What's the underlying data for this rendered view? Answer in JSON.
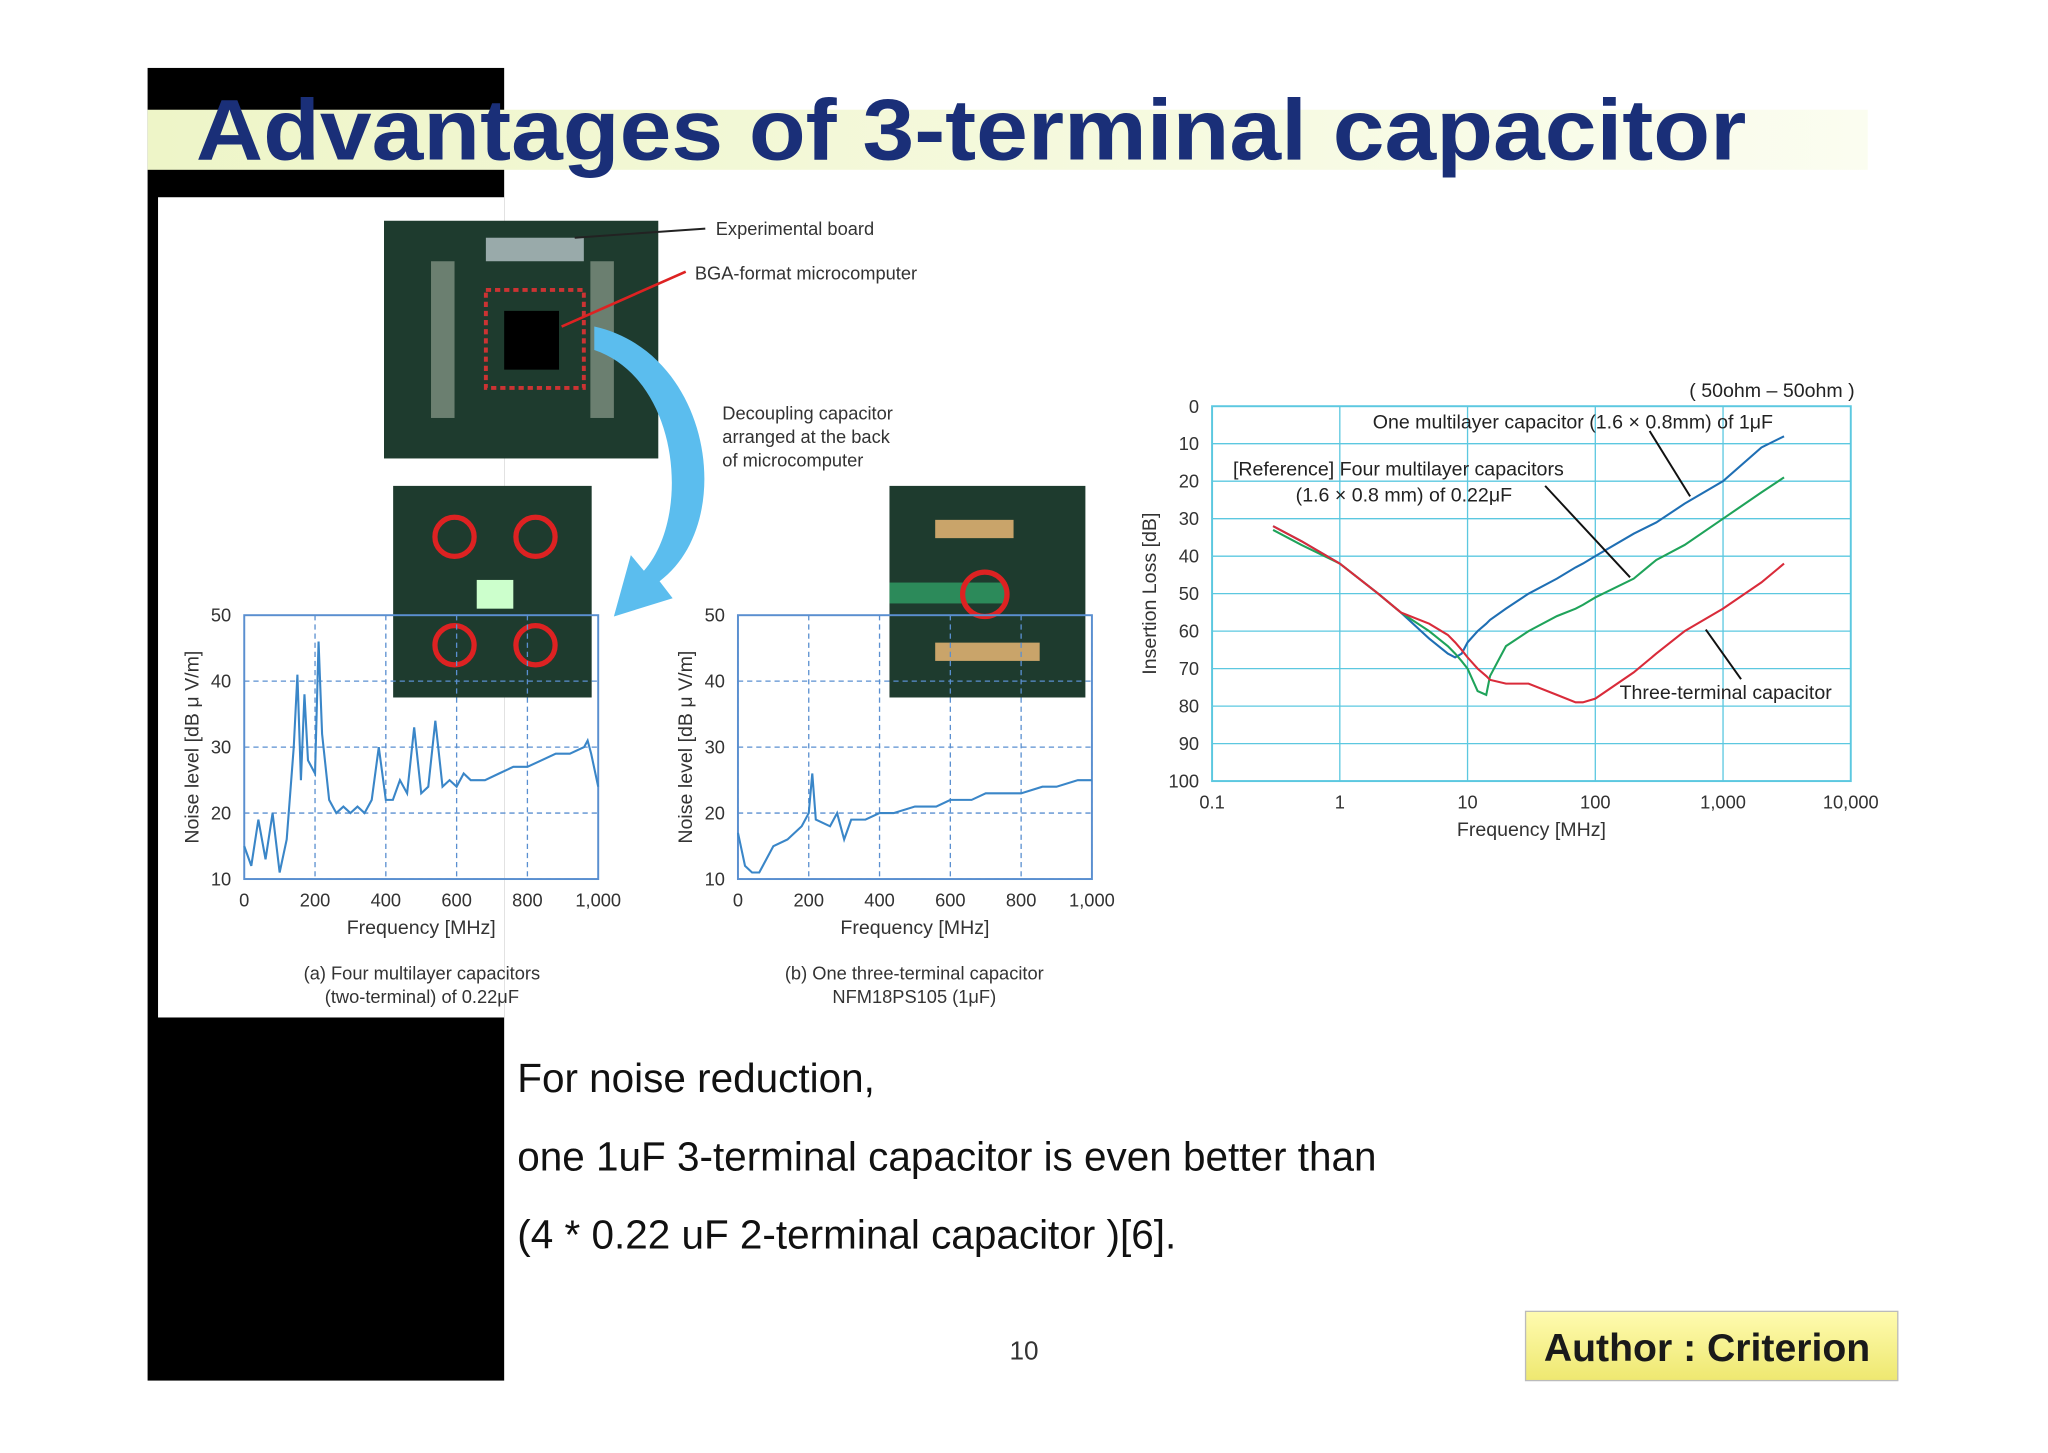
{
  "title": "Advantages of 3-terminal capacitor",
  "figure_labels": [
    "Experimental board",
    "BGA-format microcomputer",
    "Decoupling capacitor",
    "arranged at the back",
    "of microcomputer"
  ],
  "chart_data": [
    {
      "type": "line",
      "x_label": "Frequency [MHz]",
      "y_label": "Noise level [dB μ V/m]",
      "caption": [
        "(a) Four multilayer capacitors",
        "(two-terminal) of 0.22μF"
      ],
      "x": [
        0,
        20,
        40,
        60,
        80,
        100,
        120,
        140,
        150,
        160,
        170,
        180,
        200,
        210,
        220,
        240,
        260,
        280,
        300,
        320,
        340,
        360,
        380,
        400,
        420,
        440,
        460,
        480,
        500,
        520,
        540,
        560,
        580,
        600,
        620,
        640,
        680,
        720,
        760,
        800,
        840,
        880,
        920,
        960,
        970,
        980,
        1000
      ],
      "values": [
        15,
        12,
        19,
        13,
        20,
        11,
        16,
        30,
        41,
        25,
        38,
        28,
        26,
        46,
        32,
        22,
        20,
        21,
        20,
        21,
        20,
        22,
        30,
        22,
        22,
        25,
        23,
        33,
        23,
        24,
        34,
        24,
        25,
        24,
        26,
        25,
        25,
        26,
        27,
        27,
        28,
        29,
        29,
        30,
        31,
        29,
        24
      ],
      "color": "#3a86c8",
      "xlim": [
        0,
        1000
      ],
      "ylim": [
        10,
        50
      ],
      "xticks": [
        0,
        200,
        400,
        600,
        800,
        {
          "value": 1000,
          "label": "1,000"
        }
      ],
      "yticks": [
        10,
        20,
        30,
        40,
        50
      ],
      "grid": true
    },
    {
      "type": "line",
      "x_label": "Frequency [MHz]",
      "y_label": "Noise level [dB μ V/m]",
      "caption": [
        "(b) One three-terminal capacitor",
        "NFM18PS105 (1μF)"
      ],
      "x": [
        0,
        20,
        40,
        60,
        100,
        140,
        180,
        200,
        210,
        220,
        260,
        280,
        300,
        320,
        360,
        400,
        440,
        500,
        560,
        600,
        660,
        700,
        760,
        800,
        860,
        900,
        960,
        1000
      ],
      "values": [
        17,
        12,
        11,
        11,
        15,
        16,
        18,
        20,
        26,
        19,
        18,
        20,
        16,
        19,
        19,
        20,
        20,
        21,
        21,
        22,
        22,
        23,
        23,
        23,
        24,
        24,
        25,
        25
      ],
      "color": "#3a86c8",
      "xlim": [
        0,
        1000
      ],
      "ylim": [
        10,
        50
      ],
      "xticks": [
        0,
        200,
        400,
        600,
        800,
        {
          "value": 1000,
          "label": "1,000"
        }
      ],
      "yticks": [
        10,
        20,
        30,
        40,
        50
      ],
      "grid": true
    },
    {
      "type": "line",
      "x_scale": "log",
      "x_label": "Frequency [MHz]",
      "y_label": "Insertion Loss [dB]",
      "annotations": [
        "( 50ohm – 50ohm )",
        "One multilayer capacitor (1.6 × 0.8mm) of 1μF",
        "[Reference] Four multilayer capacitors",
        "(1.6 × 0.8 mm) of 0.22μF",
        "Three-terminal capacitor"
      ],
      "x": [
        0.3,
        0.5,
        1,
        2,
        3,
        5,
        7,
        8,
        9,
        10,
        12,
        14,
        15,
        20,
        30,
        50,
        70,
        80,
        100,
        200,
        300,
        500,
        1000,
        2000,
        3000
      ],
      "series": [
        {
          "color": "#1f6fb4",
          "values": [
            32,
            36,
            42,
            50,
            55,
            62,
            66,
            67,
            66,
            63,
            60,
            58,
            57,
            54,
            50,
            46,
            43,
            42,
            40,
            34,
            31,
            26,
            20,
            11,
            8
          ]
        },
        {
          "color": "#1fa35a",
          "values": [
            33,
            37,
            42,
            50,
            55,
            60,
            64,
            66,
            68,
            70,
            76,
            77,
            72,
            64,
            60,
            56,
            54,
            53,
            51,
            46,
            41,
            37,
            30,
            23,
            19
          ]
        },
        {
          "color": "#d92b3a",
          "values": [
            32,
            36,
            42,
            50,
            55,
            58,
            61,
            63,
            65,
            67,
            70,
            72,
            73,
            74,
            74,
            77,
            79,
            79,
            78,
            71,
            66,
            60,
            54,
            47,
            42
          ]
        }
      ],
      "xlim": [
        0.1,
        10000
      ],
      "ylim": [
        100,
        0
      ],
      "xticks": [
        0.1,
        1,
        10,
        100,
        {
          "value": 1000,
          "label": "1,000"
        },
        {
          "value": 10000,
          "label": "10,000"
        }
      ],
      "yticks": [
        0,
        10,
        20,
        30,
        40,
        50,
        60,
        70,
        80,
        90,
        100
      ],
      "grid": true
    }
  ],
  "body": [
    "For noise reduction,",
    "one 1uF 3-terminal capacitor is even better than",
    "(4 * 0.22 uF 2-terminal capacitor )[6]."
  ],
  "page_number": 10,
  "author": "Author : Criterion"
}
